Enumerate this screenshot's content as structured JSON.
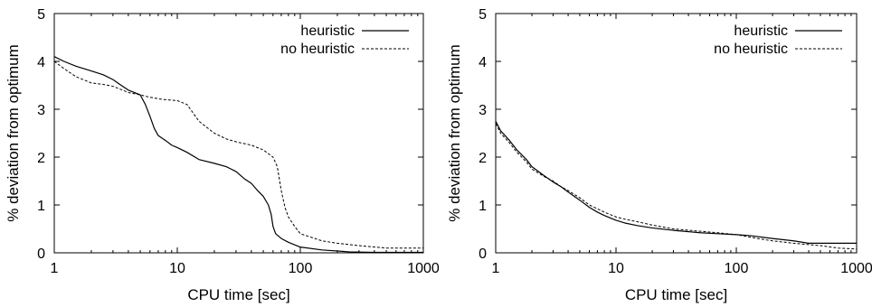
{
  "chart_data": [
    {
      "type": "line",
      "xlabel": "CPU time [sec]",
      "ylabel": "% deviation from optimum",
      "xscale": "log",
      "xlim": [
        1,
        1000
      ],
      "ylim": [
        0,
        5
      ],
      "xticks": [
        1,
        10,
        100,
        1000
      ],
      "xtick_labels": [
        "1",
        "10",
        "100",
        "1000"
      ],
      "yticks": [
        0,
        1,
        2,
        3,
        4,
        5
      ],
      "ytick_labels": [
        "0",
        "1",
        "2",
        "3",
        "4",
        "5"
      ],
      "grid": false,
      "legend_position": "top-right",
      "series": [
        {
          "name": "heuristic",
          "style": "solid",
          "x": [
            1,
            1.2,
            1.5,
            2,
            2.5,
            3,
            3.5,
            4,
            5,
            5.5,
            6,
            6.5,
            7,
            8,
            9,
            10,
            12,
            15,
            20,
            25,
            30,
            35,
            40,
            45,
            50,
            55,
            58,
            60,
            63,
            70,
            80,
            100,
            150,
            250,
            400,
            1000
          ],
          "y": [
            4.1,
            4.0,
            3.9,
            3.8,
            3.72,
            3.62,
            3.5,
            3.4,
            3.3,
            3.1,
            2.85,
            2.6,
            2.45,
            2.35,
            2.25,
            2.2,
            2.1,
            1.95,
            1.87,
            1.8,
            1.7,
            1.55,
            1.45,
            1.3,
            1.18,
            1.0,
            0.8,
            0.55,
            0.4,
            0.3,
            0.22,
            0.12,
            0.06,
            0.02,
            0.01,
            0.01
          ]
        },
        {
          "name": "no heuristic",
          "style": "dashed",
          "x": [
            1,
            1.2,
            1.5,
            2,
            2.5,
            3,
            4,
            5,
            6,
            7,
            8,
            10,
            12,
            15,
            20,
            25,
            30,
            40,
            50,
            60,
            65,
            70,
            75,
            80,
            90,
            100,
            150,
            200,
            300,
            500,
            1000
          ],
          "y": [
            4.0,
            3.85,
            3.68,
            3.55,
            3.52,
            3.48,
            3.35,
            3.3,
            3.25,
            3.22,
            3.2,
            3.18,
            3.1,
            2.75,
            2.5,
            2.38,
            2.32,
            2.25,
            2.15,
            2.0,
            1.8,
            1.3,
            0.95,
            0.75,
            0.55,
            0.4,
            0.25,
            0.2,
            0.15,
            0.1,
            0.1
          ]
        }
      ]
    },
    {
      "type": "line",
      "xlabel": "CPU time [sec]",
      "ylabel": "% deviation from optimum",
      "xscale": "log",
      "xlim": [
        1,
        1000
      ],
      "ylim": [
        0,
        5
      ],
      "xticks": [
        1,
        10,
        100,
        1000
      ],
      "xtick_labels": [
        "1",
        "10",
        "100",
        "1000"
      ],
      "yticks": [
        0,
        1,
        2,
        3,
        4,
        5
      ],
      "ytick_labels": [
        "0",
        "1",
        "2",
        "3",
        "4",
        "5"
      ],
      "grid": false,
      "legend_position": "top-right",
      "series": [
        {
          "name": "heuristic",
          "style": "solid",
          "x": [
            1,
            1.1,
            1.3,
            1.5,
            1.8,
            2,
            2.5,
            3,
            3.5,
            4,
            5,
            6,
            7,
            8,
            10,
            12,
            15,
            20,
            30,
            50,
            70,
            100,
            130,
            200,
            300,
            400,
            1000
          ],
          "y": [
            2.75,
            2.55,
            2.35,
            2.15,
            1.95,
            1.8,
            1.62,
            1.48,
            1.38,
            1.27,
            1.1,
            0.95,
            0.85,
            0.78,
            0.68,
            0.62,
            0.57,
            0.52,
            0.47,
            0.42,
            0.4,
            0.38,
            0.36,
            0.3,
            0.25,
            0.2,
            0.2
          ]
        },
        {
          "name": "no heuristic",
          "style": "dashed",
          "x": [
            1,
            1.1,
            1.3,
            1.5,
            1.8,
            2,
            2.5,
            3,
            3.5,
            4,
            5,
            6,
            7,
            8,
            10,
            12,
            15,
            20,
            30,
            50,
            70,
            100,
            150,
            200,
            300,
            500,
            700,
            1000
          ],
          "y": [
            2.7,
            2.5,
            2.3,
            2.1,
            1.9,
            1.75,
            1.6,
            1.5,
            1.38,
            1.3,
            1.15,
            1.0,
            0.92,
            0.85,
            0.75,
            0.7,
            0.65,
            0.58,
            0.5,
            0.45,
            0.42,
            0.38,
            0.3,
            0.25,
            0.2,
            0.15,
            0.1,
            0.08
          ]
        }
      ]
    }
  ]
}
